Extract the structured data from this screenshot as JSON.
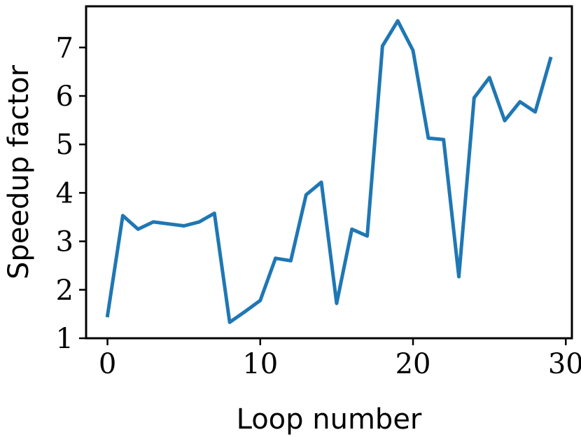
{
  "chart_data": {
    "type": "line",
    "title": "",
    "xlabel": "Loop number",
    "ylabel": "Speedup factor",
    "xlim": [
      -1.4,
      30.4
    ],
    "ylim": [
      1.0,
      7.85
    ],
    "xticks": [
      0,
      10,
      20,
      30
    ],
    "yticks": [
      1,
      2,
      3,
      4,
      5,
      6,
      7
    ],
    "grid": false,
    "legend": "none",
    "series": [
      {
        "color": "#1f77b4",
        "x": [
          0,
          1,
          2,
          3,
          4,
          5,
          6,
          7,
          8,
          9,
          10,
          11,
          12,
          13,
          14,
          15,
          16,
          17,
          18,
          19,
          20,
          21,
          22,
          23,
          24,
          25,
          26,
          27,
          28,
          29
        ],
        "y": [
          1.47,
          3.53,
          3.25,
          3.4,
          3.36,
          3.32,
          3.4,
          3.58,
          1.33,
          1.55,
          1.78,
          2.65,
          2.6,
          3.96,
          4.22,
          1.72,
          3.25,
          3.11,
          7.03,
          7.55,
          6.94,
          5.13,
          5.1,
          2.27,
          5.96,
          6.38,
          5.49,
          5.88,
          5.67,
          6.77
        ]
      }
    ]
  }
}
